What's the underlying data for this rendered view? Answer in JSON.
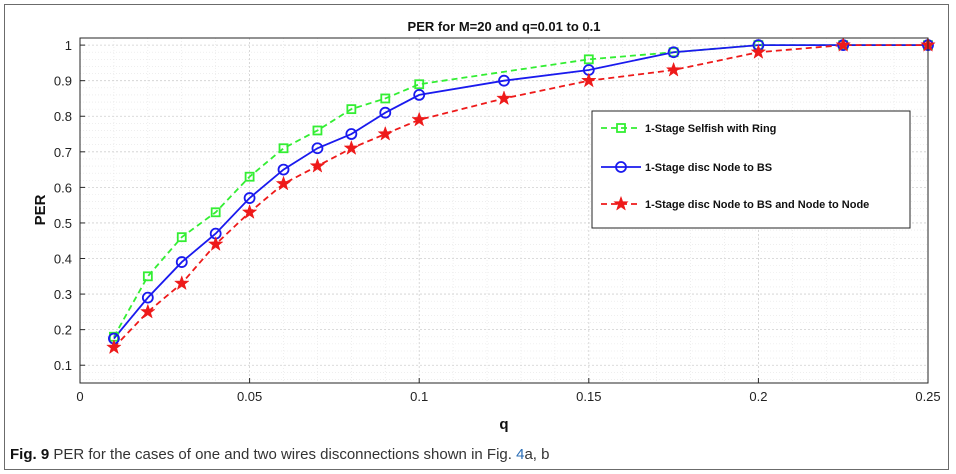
{
  "chart_data": {
    "type": "line",
    "title": "PER  for M=20 and q=0.01 to 0.1",
    "xlabel": "q",
    "ylabel": "PER",
    "xlim": [
      0,
      0.25
    ],
    "ylim": [
      0.05,
      1.02
    ],
    "x_ticks": [
      0,
      0.05,
      0.1,
      0.15,
      0.2,
      0.25
    ],
    "x_tick_labels": [
      "0",
      "0.05",
      "0.1",
      "0.15",
      "0.2",
      "0.25"
    ],
    "y_ticks": [
      0.1,
      0.2,
      0.3,
      0.4,
      0.5,
      0.6,
      0.7,
      0.8,
      0.9,
      1
    ],
    "y_tick_labels": [
      "0.1",
      "0.2",
      "0.3",
      "0.4",
      "0.5",
      "0.6",
      "0.7",
      "0.8",
      "0.9",
      "1"
    ],
    "grid": true,
    "legend_position": "right",
    "series": [
      {
        "name": "1-Stage Selfish with Ring",
        "color": "#33ee33",
        "line_style": "dashed",
        "marker": "square",
        "x": [
          0.01,
          0.02,
          0.03,
          0.04,
          0.05,
          0.06,
          0.07,
          0.08,
          0.09,
          0.1,
          0.15,
          0.175,
          0.2,
          0.225,
          0.25
        ],
        "y": [
          0.18,
          0.35,
          0.46,
          0.53,
          0.63,
          0.71,
          0.76,
          0.82,
          0.85,
          0.89,
          0.96,
          0.98,
          1.0,
          1.0,
          1.0
        ]
      },
      {
        "name": "1-Stage disc Node to BS",
        "color": "#1a1aee",
        "line_style": "solid",
        "marker": "circle",
        "x": [
          0.01,
          0.02,
          0.03,
          0.04,
          0.05,
          0.06,
          0.07,
          0.08,
          0.09,
          0.1,
          0.125,
          0.15,
          0.175,
          0.2,
          0.225,
          0.25
        ],
        "y": [
          0.175,
          0.29,
          0.39,
          0.47,
          0.57,
          0.65,
          0.71,
          0.75,
          0.81,
          0.86,
          0.9,
          0.93,
          0.98,
          1.0,
          1.0,
          1.0
        ]
      },
      {
        "name": "1-Stage disc Node to BS and Node to Node",
        "color": "#ee1a1a",
        "line_style": "dashed",
        "marker": "star",
        "x": [
          0.01,
          0.02,
          0.03,
          0.04,
          0.05,
          0.06,
          0.07,
          0.08,
          0.09,
          0.1,
          0.125,
          0.15,
          0.175,
          0.2,
          0.225,
          0.25
        ],
        "y": [
          0.15,
          0.25,
          0.33,
          0.44,
          0.53,
          0.61,
          0.66,
          0.71,
          0.75,
          0.79,
          0.85,
          0.9,
          0.93,
          0.98,
          1.0,
          1.0
        ]
      }
    ]
  },
  "caption": {
    "label": "Fig. 9",
    "text_before": "PER for the cases of one and two wires disconnections shown in Fig. ",
    "ref": "4",
    "text_after": "a, b"
  }
}
